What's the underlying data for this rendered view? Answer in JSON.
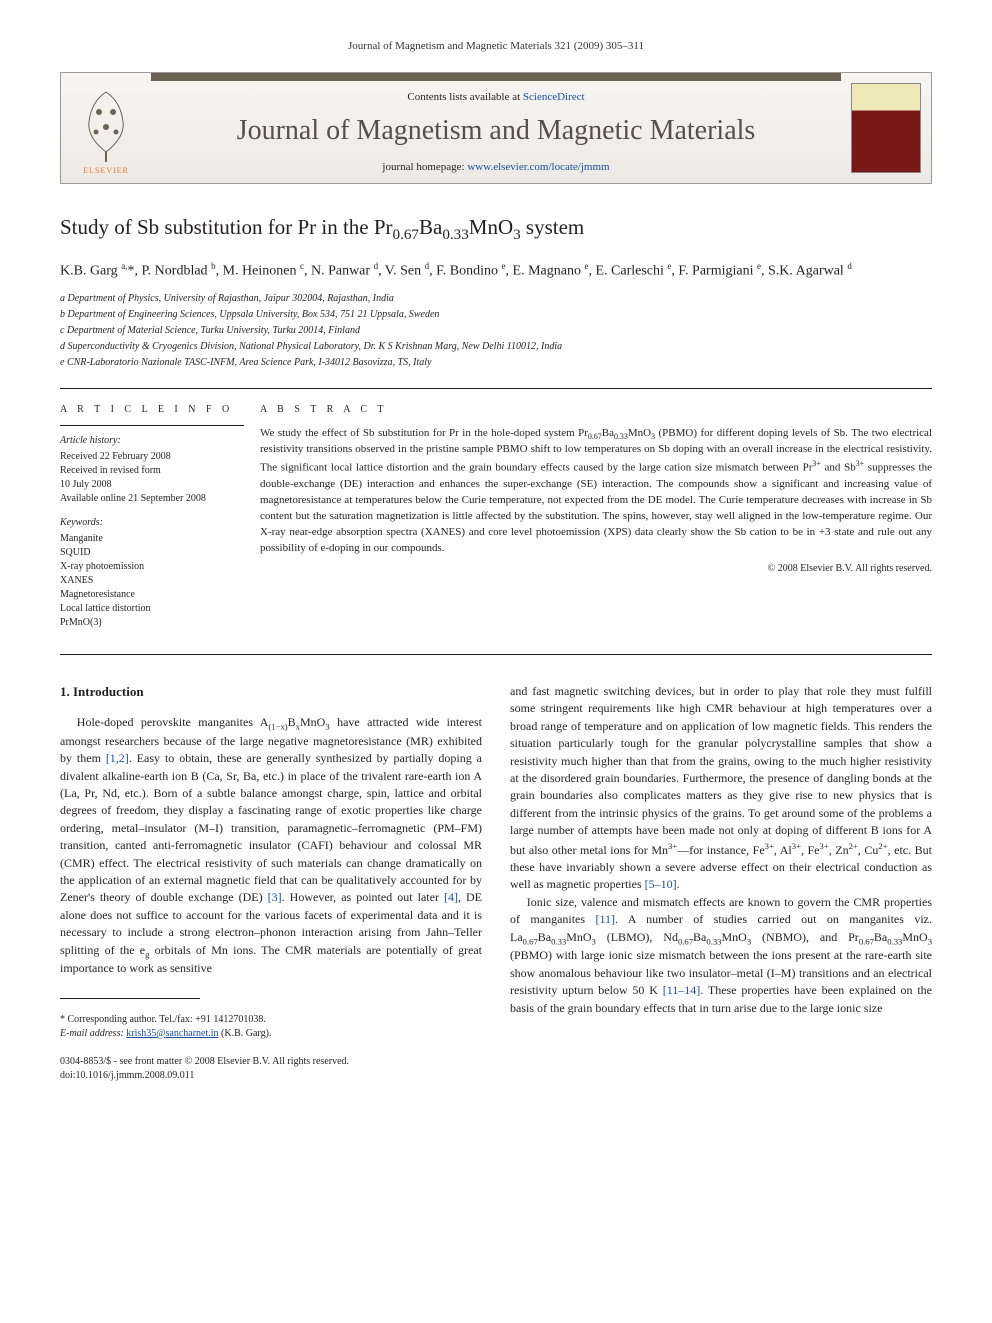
{
  "runningHead": "Journal of Magnetism and Magnetic Materials 321 (2009) 305–311",
  "masthead": {
    "contentsPrefix": "Contents lists available at ",
    "contentsLink": "ScienceDirect",
    "journal": "Journal of Magnetism and Magnetic Materials",
    "homepagePrefix": "journal homepage: ",
    "homepageLink": "www.elsevier.com/locate/jmmm",
    "publisher": "ELSEVIER",
    "logoColors": {
      "orange": "#e8782a",
      "gray": "#6b6353"
    },
    "coverColors": {
      "top": "#eee9b7",
      "bottom": "#7a1818"
    }
  },
  "article": {
    "titleHtml": "Study of Sb substitution for Pr in the Pr<sub>0.67</sub>Ba<sub>0.33</sub>MnO<sub>3</sub> system",
    "authorsHtml": "K.B. Garg <sup>a,</sup>*, P. Nordblad <sup>b</sup>, M. Heinonen <sup>c</sup>, N. Panwar <sup>d</sup>, V. Sen <sup>d</sup>, F. Bondino <sup>e</sup>, E. Magnano <sup>e</sup>, E. Carleschi <sup>e</sup>, F. Parmigiani <sup>e</sup>, S.K. Agarwal <sup>d</sup>",
    "affiliations": [
      "a Department of Physics, University of Rajasthan, Jaipur 302004, Rajasthan, India",
      "b Department of Engineering Sciences, Uppsala University, Box 534, 751 21 Uppsala, Sweden",
      "c Department of Material Science, Turku University, Turku 20014, Finland",
      "d Superconductivity & Cryogenics Division, National Physical Laboratory, Dr. K S Krishnan Marg, New Delhi 110012, India",
      "e CNR-Laboratorio Nazionale TASC-INFM, Area Science Park, I-34012 Basovizza, TS, Italy"
    ]
  },
  "info": {
    "heading": "A R T I C L E   I N F O",
    "historyLabel": "Article history:",
    "history": [
      "Received 22 February 2008",
      "Received in revised form",
      "10 July 2008",
      "Available online 21 September 2008"
    ],
    "keywordsLabel": "Keywords:",
    "keywords": [
      "Manganite",
      "SQUID",
      "X-ray photoemission",
      "XANES",
      "Magnetoresistance",
      "Local lattice distortion",
      "PrMnO(3)"
    ]
  },
  "abstract": {
    "heading": "A B S T R A C T",
    "textHtml": "We study the effect of Sb substitution for Pr in the hole-doped system Pr<sub>0.67</sub>Ba<sub>0.33</sub>MnO<sub>3</sub> (PBMO) for different doping levels of Sb. The two electrical resistivity transitions observed in the pristine sample PBMO shift to low temperatures on Sb doping with an overall increase in the electrical resistivity. The significant local lattice distortion and the grain boundary effects caused by the large cation size mismatch between Pr<sup>3+</sup> and Sb<sup>3+</sup> suppresses the double-exchange (DE) interaction and enhances the super-exchange (SE) interaction. The compounds show a significant and increasing value of magnetoresistance at temperatures below the Curie temperature, not expected from the DE model. The Curie temperature decreases with increase in Sb content but the saturation magnetization is little affected by the substitution. The spins, however, stay well aligned in the low-temperature regime. Our X-ray near-edge absorption spectra (XANES) and core level photoemission (XPS) data clearly show the Sb cation to be in +3 state and rule out any possibility of e-doping in our compounds.",
    "copyright": "© 2008 Elsevier B.V. All rights reserved."
  },
  "body": {
    "sectionNumber": "1.",
    "sectionTitle": "Introduction",
    "para1Html": "Hole-doped perovskite manganites A<sub>(1−x)</sub>B<sub>x</sub>MnO<sub>3</sub> have attracted wide interest amongst researchers because of the large negative magnetoresistance (MR) exhibited by them <span class=\"ref-link\">[1,2]</span>. Easy to obtain, these are generally synthesized by partially doping a divalent alkaline-earth ion B (Ca, Sr, Ba, etc.) in place of the trivalent rare-earth ion A (La, Pr, Nd, etc.). Born of a subtle balance amongst charge, spin, lattice and orbital degrees of freedom, they display a fascinating range of exotic properties like charge ordering, metal–insulator (M–I) transition, paramagnetic–ferromagnetic (PM–FM) transition, canted anti-ferromagnetic insulator (CAFI) behaviour and colossal MR (CMR) effect. The electrical resistivity of such materials can change dramatically on the application of an external magnetic field that can be qualitatively accounted for by Zener's theory of double exchange (DE) <span class=\"ref-link\">[3]</span>. However, as pointed out later <span class=\"ref-link\">[4]</span>, DE alone does not suffice to account for the various facets of experimental data and it is necessary to include a strong electron–phonon interaction arising from Jahn–Teller splitting of the e<sub>g</sub> orbitals of Mn ions. The CMR materials are potentially of great importance to work as sensitive",
    "para2Html": "and fast magnetic switching devices, but in order to play that role they must fulfill some stringent requirements like high CMR behaviour at high temperatures over a broad range of temperature and on application of low magnetic fields. This renders the situation particularly tough for the granular polycrystalline samples that show a resistivity much higher than that from the grains, owing to the much higher resistivity at the disordered grain boundaries. Furthermore, the presence of dangling bonds at the grain boundaries also complicates matters as they give rise to new physics that is different from the intrinsic physics of the grains. To get around some of the problems a large number of attempts have been made not only at doping of different B ions for A but also other metal ions for Mn<sup>3+</sup>—for instance, Fe<sup>3+</sup>, Al<sup>3+</sup>, Fe<sup>3+</sup>, Zn<sup>2+</sup>, Cu<sup>2+</sup>, etc. But these have invariably shown a severe adverse effect on their electrical conduction as well as magnetic properties <span class=\"ref-link\">[5–10]</span>.",
    "para3Html": "Ionic size, valence and mismatch effects are known to govern the CMR properties of manganites <span class=\"ref-link\">[11]</span>. A number of studies carried out on manganites viz. La<sub>0.67</sub>Ba<sub>0.33</sub>MnO<sub>3</sub> (LBMO), Nd<sub>0.67</sub>Ba<sub>0.33</sub>MnO<sub>3</sub> (NBMO), and Pr<sub>0.67</sub>Ba<sub>0.33</sub>MnO<sub>3</sub> (PBMO) with large ionic size mismatch between the ions present at the rare-earth site show anomalous behaviour like two insulator–metal (I–M) transitions and an electrical resistivity upturn below 50 K <span class=\"ref-link\">[11–14]</span>. These properties have been explained on the basis of the grain boundary effects that in turn arise due to the large ionic size"
  },
  "footnotes": {
    "corresponding": "* Corresponding author. Tel./fax: +91 1412701038.",
    "emailLabel": "E-mail address: ",
    "email": "krish35@sancharnet.in",
    "emailSuffix": " (K.B. Garg)."
  },
  "footer": {
    "line1": "0304-8853/$ - see front matter © 2008 Elsevier B.V. All rights reserved.",
    "line2": "doi:10.1016/j.jmmm.2008.09.011"
  },
  "colors": {
    "text": "#231f20",
    "link": "#1a4ea0",
    "rule": "#222222",
    "mastheadBorder": "#999999",
    "mastheadBar": "#6b6353"
  },
  "typography": {
    "bodyFont": "Georgia, 'Times New Roman', serif",
    "titleSize": 21,
    "journalNameSize": 28,
    "bodySize": 12,
    "abstractSize": 11,
    "metaSize": 10
  },
  "layout": {
    "pageWidth": 992,
    "pageHeight": 1323,
    "columns": 2,
    "columnGap": 28
  }
}
